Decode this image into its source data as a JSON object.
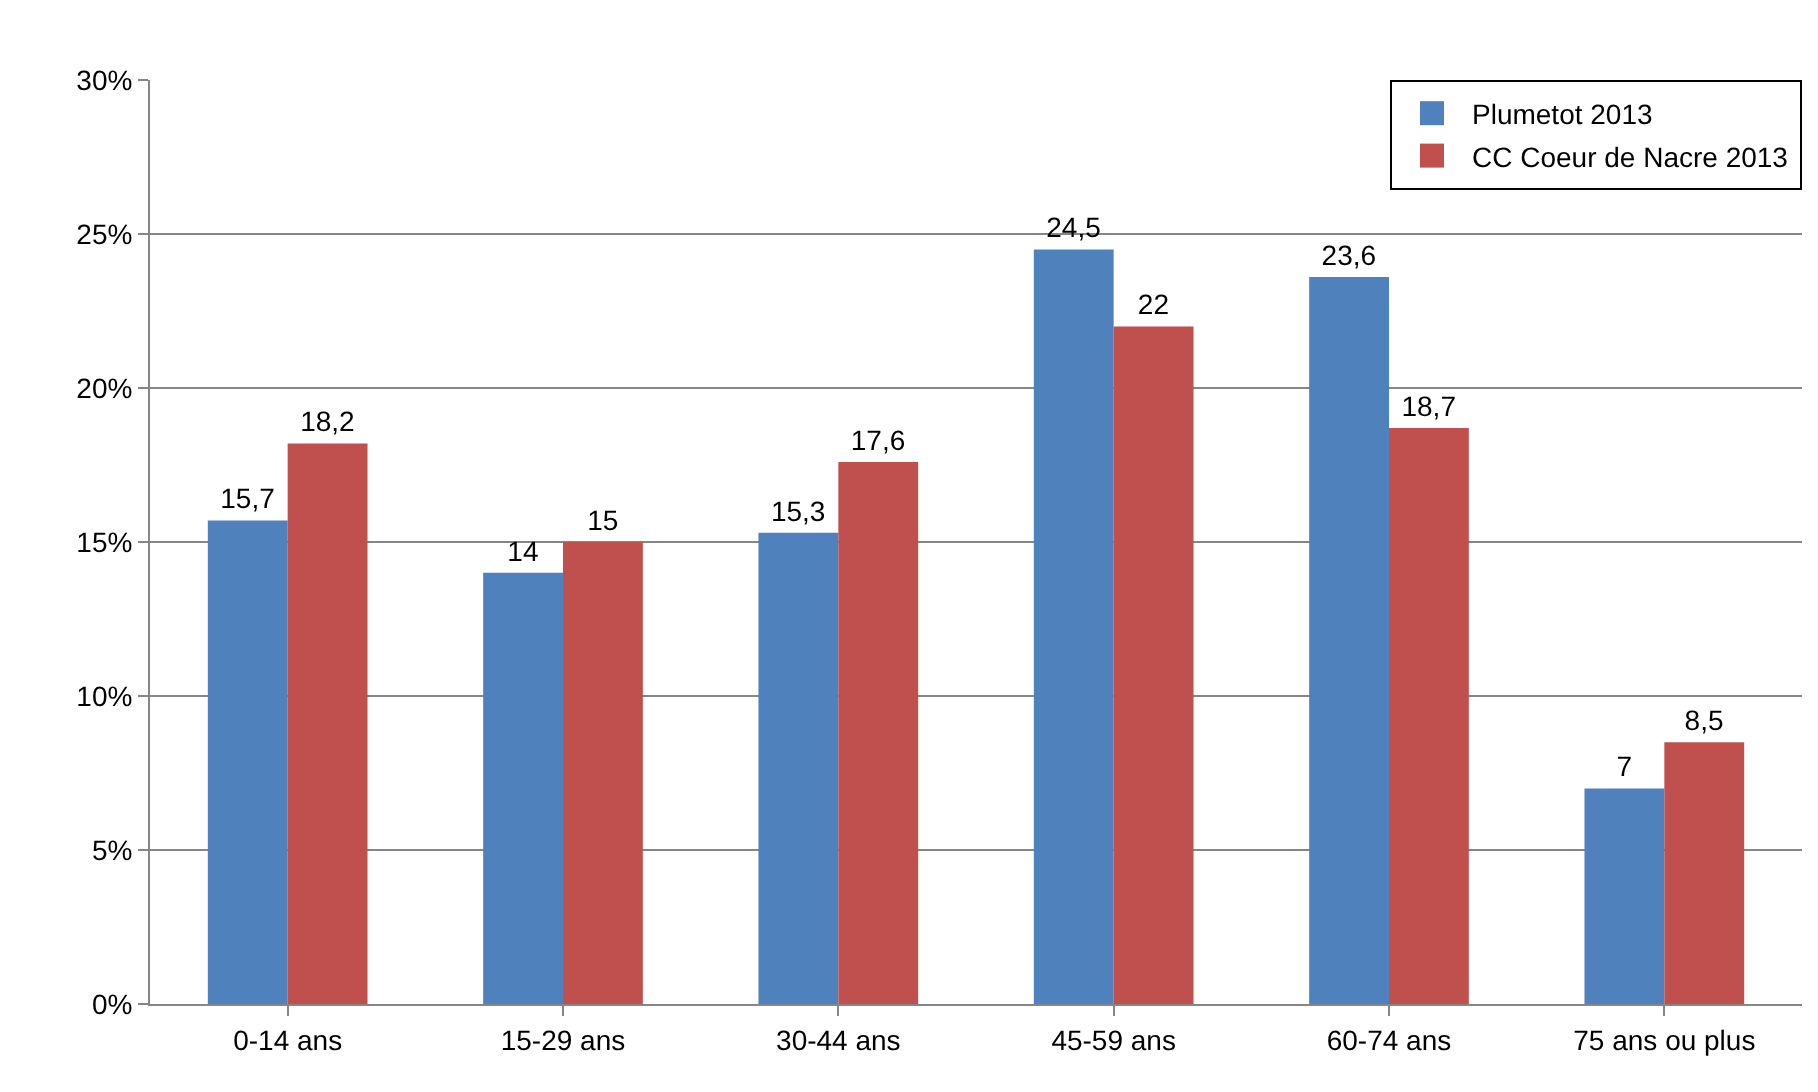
{
  "chart_data": {
    "type": "bar",
    "categories": [
      "0-14 ans",
      "15-29 ans",
      "30-44 ans",
      "45-59 ans",
      "60-74 ans",
      "75 ans ou plus"
    ],
    "series": [
      {
        "name": "Plumetot 2013",
        "color": "#4f81bd",
        "values": [
          15.7,
          14,
          15.3,
          24.5,
          23.6,
          7
        ],
        "value_labels": [
          "15,7",
          "14",
          "15,3",
          "24,5",
          "23,6",
          "7"
        ]
      },
      {
        "name": "CC Coeur de Nacre 2013",
        "color": "#c0504d",
        "values": [
          18.2,
          15,
          17.6,
          22,
          18.7,
          8.5
        ],
        "value_labels": [
          "18,2",
          "15",
          "17,6",
          "22",
          "18,7",
          "8,5"
        ]
      }
    ],
    "ylim": [
      0,
      30
    ],
    "yticks": [
      {
        "value": 0,
        "label": "0%"
      },
      {
        "value": 5,
        "label": "5%"
      },
      {
        "value": 10,
        "label": "10%"
      },
      {
        "value": 15,
        "label": "15%"
      },
      {
        "value": 20,
        "label": "20%"
      },
      {
        "value": 25,
        "label": "25%"
      },
      {
        "value": 30,
        "label": "30%"
      }
    ],
    "grid": "y",
    "legend": "top right"
  }
}
